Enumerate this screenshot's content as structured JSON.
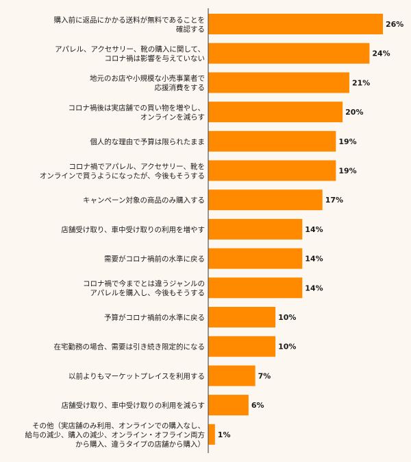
{
  "chart_data": {
    "type": "bar",
    "orientation": "horizontal",
    "title": "",
    "xlabel": "",
    "ylabel": "",
    "value_suffix": "%",
    "xlim": [
      0,
      26
    ],
    "grid": false,
    "bar_color": "#ff8a00",
    "axis_color": "#555555",
    "categories": [
      [
        "購入前に返品にかかる送料が無料であることを",
        "確認する"
      ],
      [
        "アパレル、アクセサリー、靴の購入に関して、",
        "コロナ禍は影響を与えていない"
      ],
      [
        "地元のお店や小規模な小売事業者で",
        "応援消費をする"
      ],
      [
        "コロナ禍後は実店舗での買い物を増やし、",
        "オンラインを減らす"
      ],
      [
        "個人的な理由で予算は限られたまま"
      ],
      [
        "コロナ禍でアパレル、アクセサリー、靴を",
        "オンラインで買うようになったが、今後もそうする"
      ],
      [
        "キャンペーン対象の商品のみ購入する"
      ],
      [
        "店舗受け取り、車中受け取りの利用を増やす"
      ],
      [
        "需要がコロナ禍前の水準に戻る"
      ],
      [
        "コロナ禍で今までとは違うジャンルの",
        "アパレルを購入し、今後もそうする"
      ],
      [
        "予算がコロナ禍前の水準に戻る"
      ],
      [
        "在宅勤務の場合、需要は引き続き限定的になる"
      ],
      [
        "以前よりもマーケットプレイスを利用する"
      ],
      [
        "店舗受け取り、車中受け取りの利用を減らす"
      ],
      [
        "その他（実店舗のみ利用、オンラインでの購入なし、",
        "給与の減少、購入の減少、オンライン・オフライン両方",
        "から購入、違うタイプの店舗から購入）"
      ]
    ],
    "values": [
      26,
      24,
      21,
      20,
      19,
      19,
      17,
      14,
      14,
      14,
      10,
      10,
      7,
      6,
      1
    ]
  }
}
